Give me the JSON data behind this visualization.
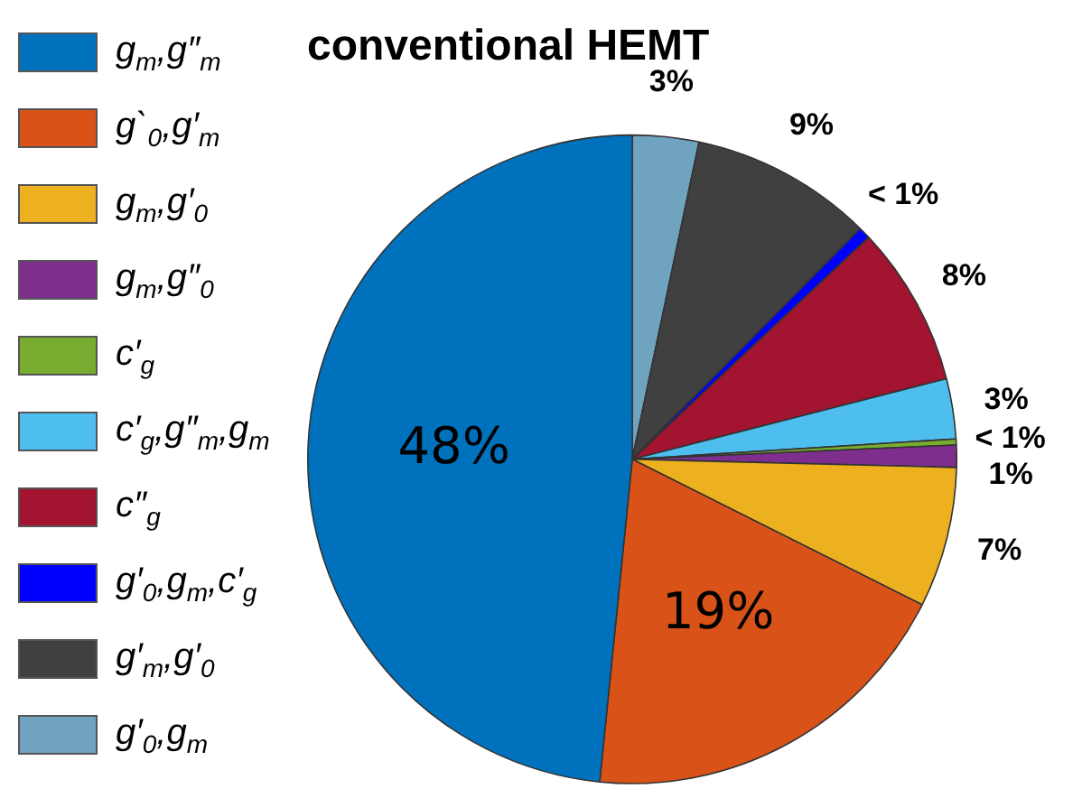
{
  "chart_data": {
    "type": "pie",
    "title": "conventional HEMT",
    "categories": [
      "g$_{m}$,g″$_{m}$",
      "g`$_{0}$,g′$_{m}$",
      "g$_{m}$,g′$_{0}$",
      "g$_{m}$,g″$_{0}$",
      "c′$_{g}$",
      "c′$_{g}$,g″$_{m}$,g$_{m}$",
      "c″$_{g}$",
      "g′$_{0}$,g$_{m}$,c′$_{g}$",
      "g′$_{m}$,g′$_{0}$",
      "g′$_{0}$,g$_{m}$"
    ],
    "values": [
      48.4,
      19.2,
      7,
      1.1,
      0.3,
      3,
      8,
      0.6,
      9.1,
      3.3
    ],
    "colors": [
      "#0072bd",
      "#d95319",
      "#edb120",
      "#7e2f8e",
      "#77ac30",
      "#4dbeee",
      "#a2142f",
      "#0000ff",
      "#404040",
      "#6fa3c0"
    ],
    "value_labels": [
      "48%",
      "19%",
      "7%",
      "1%",
      "< 1%",
      "3%",
      "8%",
      "< 1%",
      "9%",
      "3%"
    ],
    "legend": "left"
  }
}
